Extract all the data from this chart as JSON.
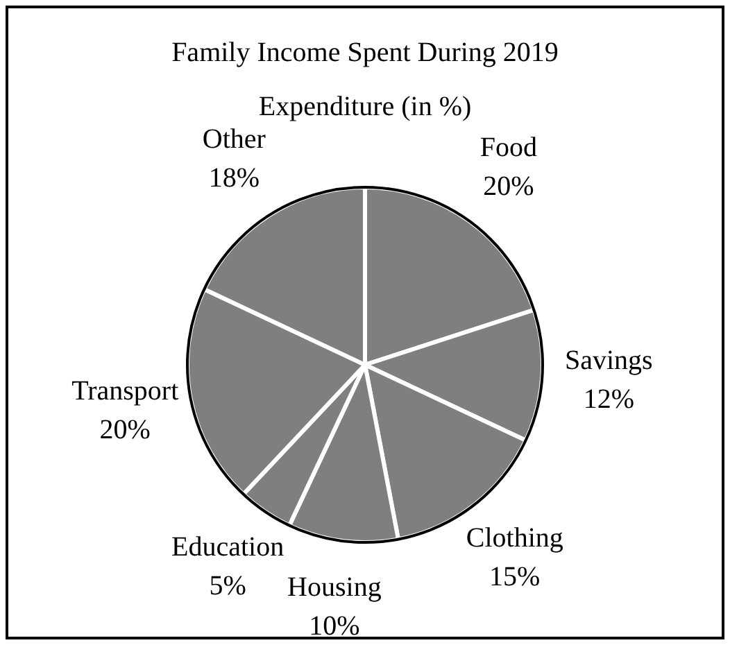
{
  "chart_data": {
    "type": "pie",
    "title": "Family Income Spent During 2019",
    "subtitle": "Expenditure (in %)",
    "categories": [
      "Food",
      "Savings",
      "Clothing",
      "Housing",
      "Education",
      "Transport",
      "Other"
    ],
    "values": [
      20,
      12,
      15,
      10,
      5,
      20,
      18
    ],
    "colors": [
      "#7f7f7f",
      "#7f7f7f",
      "#7f7f7f",
      "#7f7f7f",
      "#7f7f7f",
      "#7f7f7f",
      "#7f7f7f"
    ],
    "value_labels": [
      "20%",
      "12%",
      "15%",
      "10%",
      "5%",
      "20%",
      "18%"
    ],
    "legend": false
  }
}
